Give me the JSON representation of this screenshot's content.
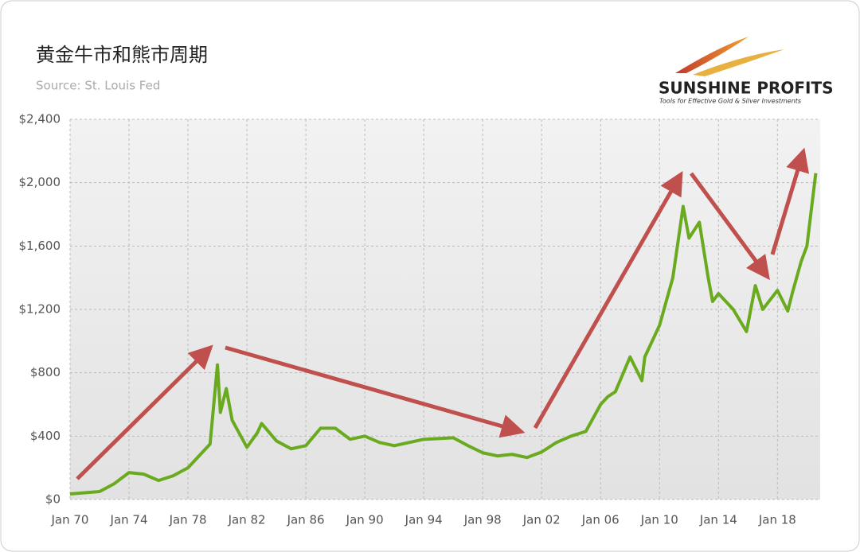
{
  "chart_data": {
    "type": "line",
    "title": "黄金牛市和熊市周期",
    "subtitle": "Source: St. Louis Fed",
    "logo": "SUNSHINE PROFITS",
    "logo_tagline": "Tools for Effective Gold & Silver Investments",
    "x": [
      1970,
      1972,
      1973,
      1974,
      1975,
      1976,
      1977,
      1978,
      1979,
      1979.5,
      1980.0,
      1980.2,
      1980.6,
      1981,
      1982,
      1982.7,
      1983,
      1984,
      1985,
      1986,
      1987,
      1988,
      1989,
      1990,
      1991,
      1992,
      1993,
      1994,
      1995,
      1996,
      1997,
      1998,
      1999,
      2000,
      2001,
      2002,
      2003,
      2004,
      2005,
      2006,
      2006.5,
      2007,
      2008,
      2008.8,
      2009,
      2010,
      2010.9,
      2011.6,
      2012,
      2012.7,
      2013.3,
      2013.6,
      2014,
      2015,
      2015.9,
      2016.5,
      2017,
      2018,
      2018.7,
      2019,
      2019.6,
      2020,
      2020.6
    ],
    "series": [
      {
        "name": "Gold",
        "color": "#6aaa1e",
        "values": [
          35,
          50,
          100,
          170,
          160,
          120,
          150,
          200,
          300,
          350,
          850,
          550,
          700,
          500,
          330,
          420,
          480,
          370,
          320,
          340,
          450,
          450,
          380,
          400,
          360,
          340,
          360,
          380,
          385,
          390,
          340,
          295,
          275,
          285,
          265,
          300,
          360,
          400,
          430,
          600,
          650,
          680,
          900,
          750,
          900,
          1100,
          1400,
          1850,
          1650,
          1750,
          1400,
          1250,
          1300,
          1200,
          1060,
          1350,
          1200,
          1320,
          1190,
          1300,
          1500,
          1600,
          2060
        ]
      }
    ],
    "xlim": [
      1970,
      2020.9
    ],
    "xticks": [
      {
        "value": 1970,
        "label": "Jan 70"
      },
      {
        "value": 1974,
        "label": "Jan 74"
      },
      {
        "value": 1978,
        "label": "Jan 78"
      },
      {
        "value": 1982,
        "label": "Jan 82"
      },
      {
        "value": 1986,
        "label": "Jan 86"
      },
      {
        "value": 1990,
        "label": "Jan 90"
      },
      {
        "value": 1994,
        "label": "Jan 94"
      },
      {
        "value": 1998,
        "label": "Jan 98"
      },
      {
        "value": 2002,
        "label": "Jan 02"
      },
      {
        "value": 2006,
        "label": "Jan 06"
      },
      {
        "value": 2010,
        "label": "Jan 10"
      },
      {
        "value": 2014,
        "label": "Jan 14"
      },
      {
        "value": 2018,
        "label": "Jan 18"
      }
    ],
    "ylim": [
      0,
      2400
    ],
    "yticks": [
      {
        "value": 0,
        "label": "$0"
      },
      {
        "value": 400,
        "label": "$400"
      },
      {
        "value": 800,
        "label": "$800"
      },
      {
        "value": 1200,
        "label": "$1,200"
      },
      {
        "value": 1600,
        "label": "$1,600"
      },
      {
        "value": 2000,
        "label": "$2,000"
      },
      {
        "value": 2400,
        "label": "$2,400"
      }
    ],
    "grid": true
  }
}
